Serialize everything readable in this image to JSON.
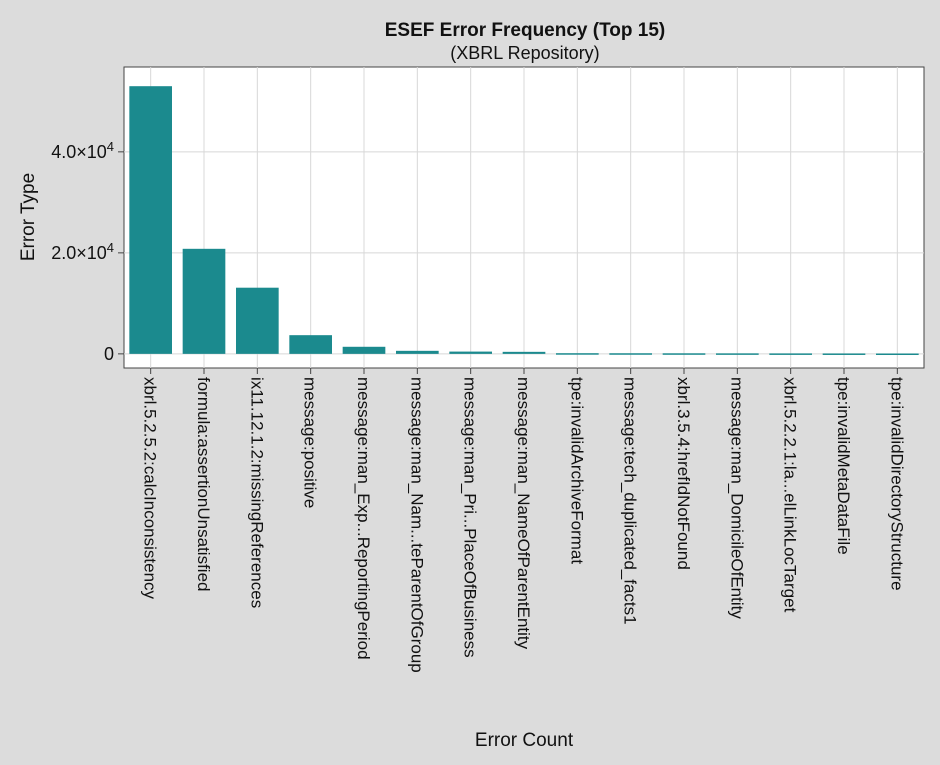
{
  "chart_data": {
    "type": "bar",
    "title": "ESEF Error Frequency (Top 15)",
    "subtitle": "(XBRL Repository)",
    "xlabel": "Error Count",
    "ylabel": "Error Type",
    "categories": [
      "xbrl.5.2.5.2:calcInconsistency",
      "formula:assertionUnsatisfied",
      "ix11.12.1.2:missingReferences",
      "message:positive",
      "message:man_Exp...ReportingPeriod",
      "message:man_Nam...teParentOfGroup",
      "message:man_Pri...PlaceOfBusiness",
      "message:man_NameOfParentEntity",
      "tpe:invalidArchiveFormat",
      "message:tech_duplicated_facts1",
      "xbrl.3.5.4:hrefIdNotFound",
      "message:man_DomicileOfEntity",
      "xbrl.5.2.2.1:la...elLinkLocTarget",
      "tpe:invalidMetaDataFile",
      "tpe:invalidDirectoryStructure"
    ],
    "values": [
      53000,
      20800,
      13100,
      3700,
      1400,
      600,
      450,
      400,
      130,
      120,
      110,
      100,
      90,
      80,
      70
    ],
    "ylim": [
      -2800,
      56800
    ],
    "yticks": [
      {
        "value": 0,
        "base": "0",
        "exp": ""
      },
      {
        "value": 20000,
        "base": "2.0×10",
        "exp": "4"
      },
      {
        "value": 40000,
        "base": "4.0×10",
        "exp": "4"
      }
    ],
    "grid": true,
    "colors": {
      "bar": "#1b8a8e",
      "grid": "#d8d8d8",
      "plot_bg": "#ffffff",
      "page_bg": "#dcdcdc"
    }
  }
}
